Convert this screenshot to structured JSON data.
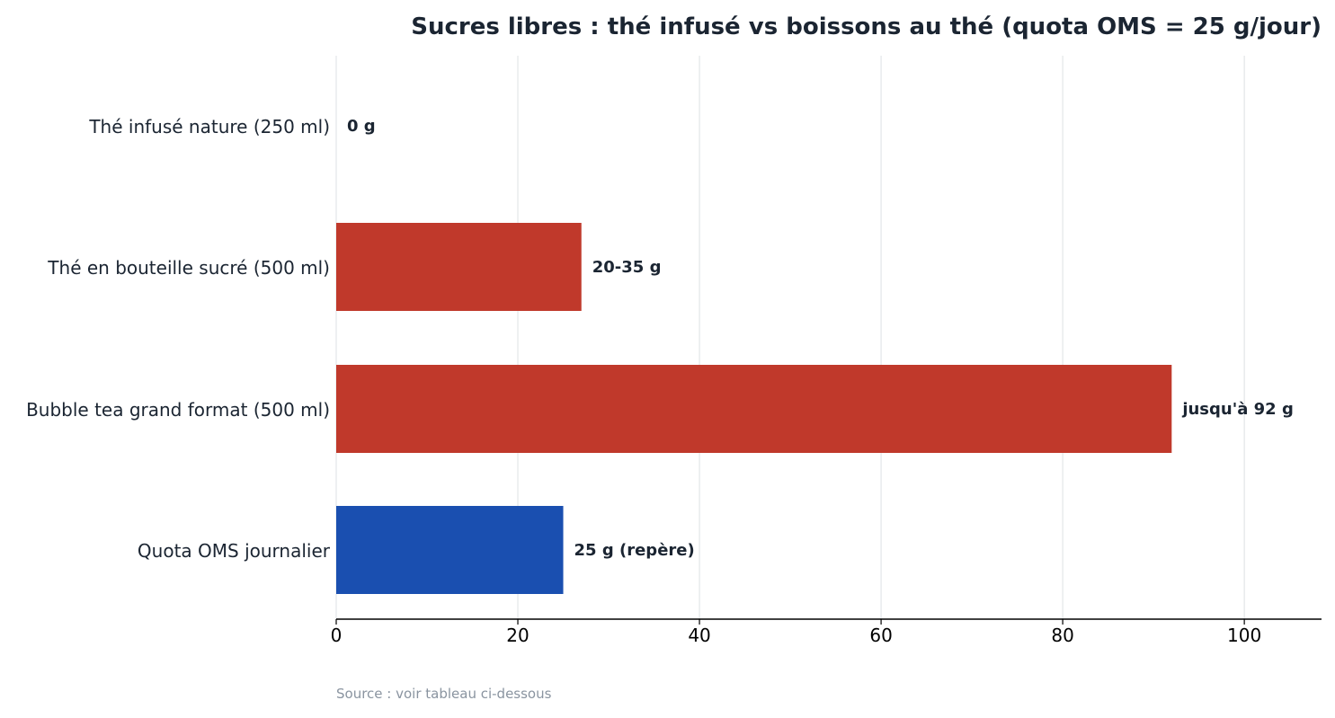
{
  "chart_data": {
    "type": "bar",
    "orientation": "horizontal",
    "title": "Sucres libres : thé infusé vs boissons au thé (quota OMS = 25 g/jour)",
    "xlabel": "",
    "ylabel": "",
    "xlim": [
      0,
      108.5
    ],
    "x_ticks": [
      0,
      20,
      40,
      60,
      80,
      100
    ],
    "grid": true,
    "legend": "none",
    "categories": [
      "Thé infusé nature (250 ml)",
      "Thé en bouteille sucré (500 ml)",
      "Bubble tea grand format (500 ml)",
      "Quota OMS journalier"
    ],
    "values": [
      0,
      27,
      92,
      25
    ],
    "data_labels": [
      "0 g",
      "20-35 g",
      "jusqu'à 92 g",
      "25 g (repère)"
    ],
    "bar_colors": [
      "#c0392b",
      "#c0392b",
      "#c0392b",
      "#1a4fb0"
    ],
    "source": "Source : voir tableau ci-dessous"
  }
}
